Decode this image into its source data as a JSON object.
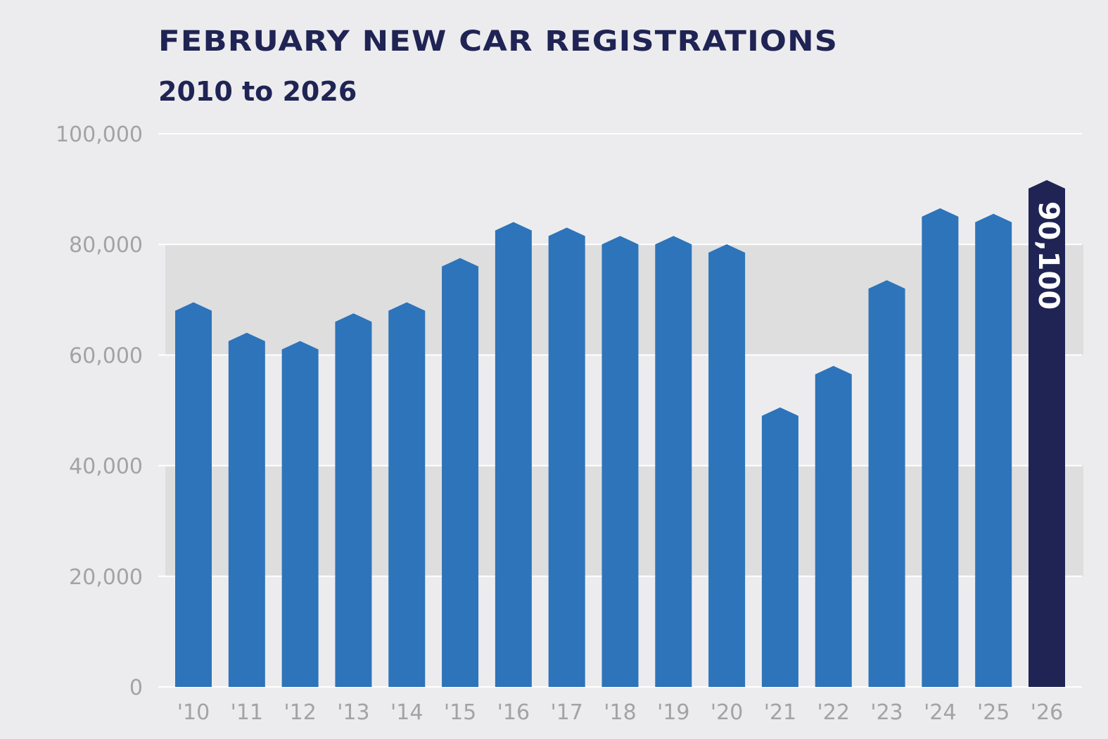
{
  "chart_data": {
    "type": "bar",
    "title": "FEBRUARY NEW CAR REGISTRATIONS",
    "subtitle": "2010 to 2026",
    "xlabel": "",
    "ylabel": "",
    "ylim": [
      0,
      100000
    ],
    "yticks": [
      "0",
      "20,000",
      "40,000",
      "60,000",
      "80,000",
      "100,000"
    ],
    "categories": [
      "'10",
      "'11",
      "'12",
      "'13",
      "'14",
      "'15",
      "'16",
      "'17",
      "'18",
      "'19",
      "'20",
      "'21",
      "'22",
      "'23",
      "'24",
      "'25",
      "'26"
    ],
    "values": [
      68000,
      62500,
      61000,
      66000,
      68000,
      76000,
      82500,
      81500,
      80000,
      80000,
      78500,
      49000,
      56500,
      72000,
      85000,
      84000,
      90100
    ],
    "highlight": {
      "category": "'26",
      "label": "90,100"
    },
    "grid": true,
    "colors": {
      "bar": "#2d74ba",
      "highlight": "#1f2454",
      "band": "#dededf",
      "background": "#ececee",
      "gridline": "#ffffff"
    }
  }
}
